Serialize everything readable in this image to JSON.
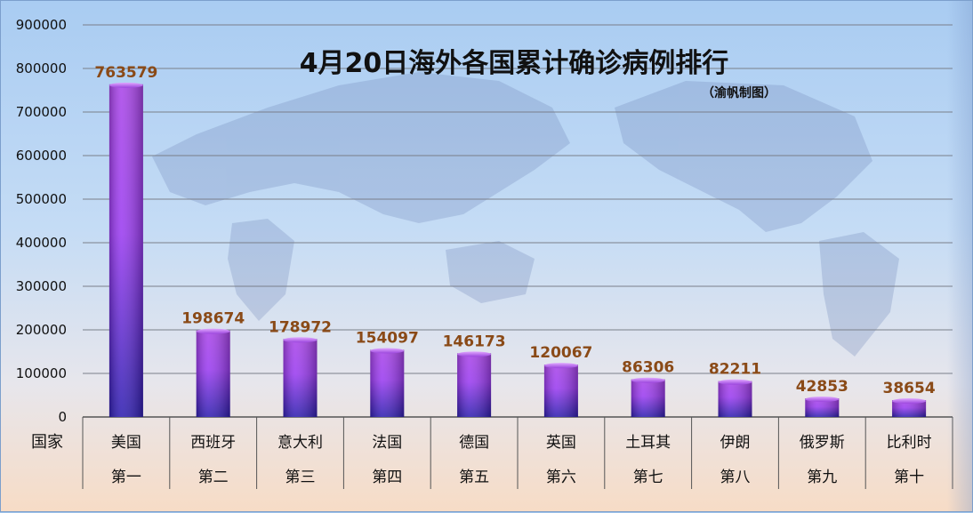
{
  "chart_data": {
    "type": "bar",
    "title": "4月20日海外各国累计确诊病例排行",
    "subtitle": "（渝帆制图）",
    "xlabel": "国家",
    "ylabel": "",
    "ylim": [
      0,
      900000
    ],
    "yticks": [
      "0",
      "100000",
      "200000",
      "300000",
      "400000",
      "500000",
      "600000",
      "700000",
      "800000",
      "900000"
    ],
    "categories": [
      "美国",
      "西班牙",
      "意大利",
      "法国",
      "德国",
      "英国",
      "土耳其",
      "伊朗",
      "俄罗斯",
      "比利时"
    ],
    "ranks": [
      "第一",
      "第二",
      "第三",
      "第四",
      "第五",
      "第六",
      "第七",
      "第八",
      "第九",
      "第十"
    ],
    "values": [
      763579,
      198674,
      178972,
      154097,
      146173,
      120067,
      86306,
      82211,
      42853,
      38654
    ],
    "grid": true,
    "legend": "none",
    "colors": {
      "bar_top": "#b24df0",
      "bar_mid": "#8a2be2",
      "bar_bottom": "#3a1fb5",
      "value_label": "#8a4a17"
    }
  }
}
